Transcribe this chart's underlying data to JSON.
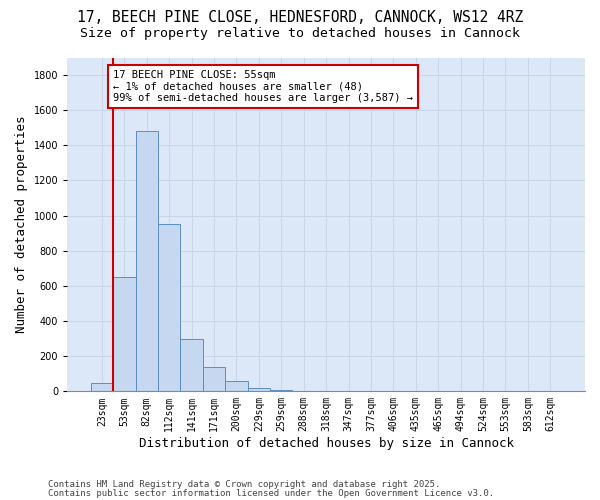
{
  "title_line1": "17, BEECH PINE CLOSE, HEDNESFORD, CANNOCK, WS12 4RZ",
  "title_line2": "Size of property relative to detached houses in Cannock",
  "xlabel": "Distribution of detached houses by size in Cannock",
  "ylabel": "Number of detached properties",
  "categories": [
    "23sqm",
    "53sqm",
    "82sqm",
    "112sqm",
    "141sqm",
    "171sqm",
    "200sqm",
    "229sqm",
    "259sqm",
    "288sqm",
    "318sqm",
    "347sqm",
    "377sqm",
    "406sqm",
    "435sqm",
    "465sqm",
    "494sqm",
    "524sqm",
    "553sqm",
    "583sqm",
    "612sqm"
  ],
  "values": [
    47,
    650,
    1480,
    950,
    298,
    138,
    60,
    20,
    8,
    3,
    2,
    1,
    0,
    0,
    0,
    0,
    0,
    0,
    0,
    0,
    0
  ],
  "bar_color": "#c5d8f0",
  "bar_edge_color": "#5b8ec4",
  "red_line_index": 1,
  "annotation_title": "17 BEECH PINE CLOSE: 55sqm",
  "annotation_line2": "← 1% of detached houses are smaller (48)",
  "annotation_line3": "99% of semi-detached houses are larger (3,587) →",
  "annotation_box_color": "#ffffff",
  "annotation_box_edge": "#cc0000",
  "ylim": [
    0,
    1900
  ],
  "yticks": [
    0,
    200,
    400,
    600,
    800,
    1000,
    1200,
    1400,
    1600,
    1800
  ],
  "grid_color": "#c8d4e8",
  "background_color": "#dce8f8",
  "footer_line1": "Contains HM Land Registry data © Crown copyright and database right 2025.",
  "footer_line2": "Contains public sector information licensed under the Open Government Licence v3.0.",
  "title_fontsize": 10.5,
  "subtitle_fontsize": 9.5,
  "axis_label_fontsize": 9,
  "tick_fontsize": 7,
  "annotation_fontsize": 7.5,
  "footer_fontsize": 6.5
}
